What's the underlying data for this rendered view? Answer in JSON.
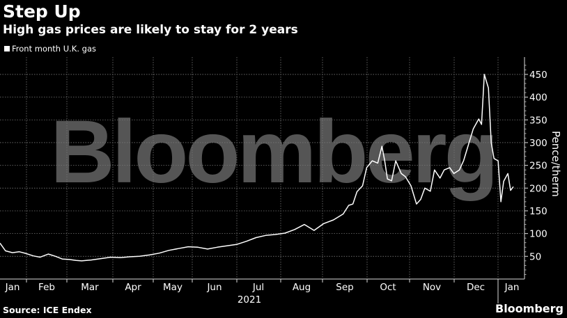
{
  "header": {
    "title": "Step Up",
    "subtitle": "High gas prices are likely to stay for 2 years"
  },
  "legend": {
    "label": "Front month U.K. gas"
  },
  "footer": {
    "source": "Source: ICE Endex",
    "brand": "Bloomberg"
  },
  "watermark": "Bloomberg",
  "chart_data": {
    "type": "line",
    "title": "Step Up",
    "subtitle": "High gas prices are likely to stay for 2 years",
    "xlabel": "2021",
    "ylabel": "Pence/therm",
    "ylim": [
      0,
      480
    ],
    "yticks": [
      50,
      100,
      150,
      200,
      250,
      300,
      350,
      400,
      450
    ],
    "xticks": [
      "Jan",
      "Feb",
      "Mar",
      "Apr",
      "May",
      "Jun",
      "Jul",
      "Aug",
      "Sep",
      "Oct",
      "Nov",
      "Dec",
      "Jan"
    ],
    "year_label": "2021",
    "grid": true,
    "legend_position": "top-left",
    "series": [
      {
        "name": "Front month U.K. gas",
        "color": "#ffffff",
        "x": [
          "2021-01-01",
          "2021-01-05",
          "2021-01-10",
          "2021-01-15",
          "2021-01-20",
          "2021-01-25",
          "2021-01-30",
          "2021-02-05",
          "2021-02-10",
          "2021-02-15",
          "2021-02-20",
          "2021-02-25",
          "2021-03-01",
          "2021-03-08",
          "2021-03-15",
          "2021-03-22",
          "2021-03-29",
          "2021-04-05",
          "2021-04-12",
          "2021-04-19",
          "2021-04-26",
          "2021-05-03",
          "2021-05-10",
          "2021-05-17",
          "2021-05-24",
          "2021-05-31",
          "2021-06-07",
          "2021-06-14",
          "2021-06-21",
          "2021-06-28",
          "2021-07-05",
          "2021-07-12",
          "2021-07-19",
          "2021-07-26",
          "2021-08-02",
          "2021-08-09",
          "2021-08-16",
          "2021-08-23",
          "2021-08-30",
          "2021-09-06",
          "2021-09-10",
          "2021-09-13",
          "2021-09-16",
          "2021-09-20",
          "2021-09-23",
          "2021-09-27",
          "2021-10-01",
          "2021-10-04",
          "2021-10-06",
          "2021-10-08",
          "2021-10-11",
          "2021-10-14",
          "2021-10-18",
          "2021-10-21",
          "2021-10-25",
          "2021-10-29",
          "2021-11-01",
          "2021-11-04",
          "2021-11-08",
          "2021-11-11",
          "2021-11-15",
          "2021-11-18",
          "2021-11-22",
          "2021-11-25",
          "2021-11-29",
          "2021-12-02",
          "2021-12-06",
          "2021-12-09",
          "2021-12-13",
          "2021-12-15",
          "2021-12-17",
          "2021-12-20",
          "2021-12-22",
          "2021-12-24",
          "2021-12-27",
          "2021-12-29",
          "2021-12-31",
          "2022-01-03",
          "2022-01-05",
          "2022-01-07"
        ],
        "values": [
          79,
          62,
          58,
          60,
          56,
          51,
          48,
          55,
          50,
          44,
          43,
          41,
          40,
          42,
          45,
          48,
          47,
          49,
          50,
          53,
          57,
          63,
          67,
          71,
          70,
          66,
          70,
          73,
          76,
          83,
          91,
          96,
          98,
          101,
          109,
          120,
          107,
          122,
          130,
          143,
          162,
          165,
          192,
          205,
          245,
          260,
          255,
          292,
          260,
          220,
          216,
          260,
          232,
          225,
          205,
          165,
          175,
          200,
          193,
          240,
          222,
          240,
          245,
          232,
          240,
          260,
          300,
          330,
          352,
          340,
          450,
          420,
          300,
          265,
          260,
          170,
          215,
          232,
          195,
          203
        ]
      }
    ]
  }
}
